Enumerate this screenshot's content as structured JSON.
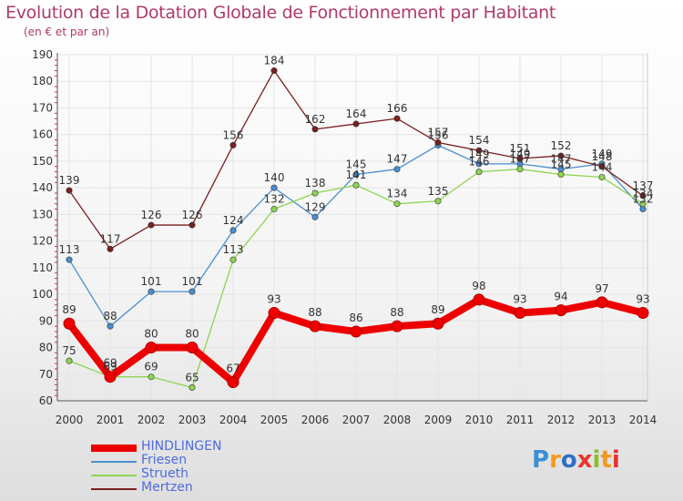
{
  "title": "Evolution de la Dotation Globale de Fonctionnement par Habitant",
  "subtitle": "(en € et par an)",
  "brand": {
    "text": "Proxiti",
    "letters": [
      "P",
      "r",
      "o",
      "x",
      "i",
      "t",
      "i"
    ],
    "colors": [
      "#3a8fd6",
      "#f39a1e",
      "#2f6fc6",
      "#e8372c",
      "#8bbf2a",
      "#f39a1e",
      "#e3342f"
    ]
  },
  "chart_data": {
    "type": "line",
    "title": "Evolution de la Dotation Globale de Fonctionnement par Habitant",
    "ylabel": "(en € et par an)",
    "x": [
      "2000",
      "2001",
      "2002",
      "2003",
      "2004",
      "2005",
      "2006",
      "2007",
      "2008",
      "2009",
      "2010",
      "2011",
      "2012",
      "2013",
      "2014"
    ],
    "ylim": [
      60,
      190
    ],
    "yticks": [
      60,
      70,
      80,
      90,
      100,
      110,
      120,
      130,
      140,
      150,
      160,
      170,
      180,
      190
    ],
    "grid": true,
    "legend_position": "bottom-left",
    "series": [
      {
        "name": "HINDLINGEN",
        "color": "#ee0000",
        "values": [
          89,
          69,
          80,
          80,
          67,
          93,
          88,
          86,
          88,
          89,
          98,
          93,
          94,
          97,
          93
        ]
      },
      {
        "name": "Friesen",
        "color": "#4a8ed0",
        "values": [
          113,
          88,
          101,
          101,
          124,
          140,
          129,
          145,
          147,
          156,
          149,
          149,
          147,
          149,
          132
        ]
      },
      {
        "name": "Strueth",
        "color": "#8ed452",
        "values": [
          75,
          69,
          69,
          65,
          113,
          132,
          138,
          141,
          134,
          135,
          146,
          147,
          145,
          144,
          134
        ]
      },
      {
        "name": "Mertzen",
        "color": "#7a1f1f",
        "values": [
          139,
          117,
          126,
          126,
          156,
          184,
          162,
          164,
          166,
          157,
          154,
          151,
          152,
          148,
          137
        ]
      }
    ]
  }
}
